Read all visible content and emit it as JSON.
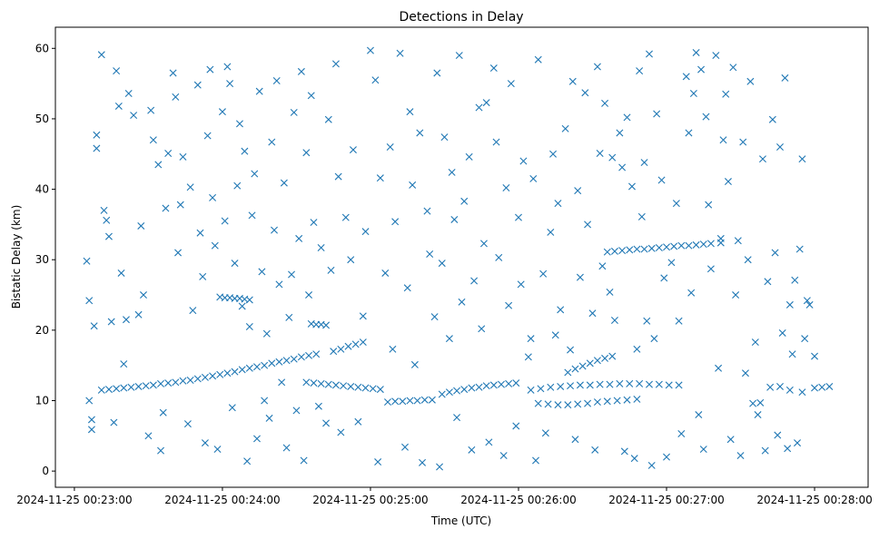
{
  "chart_data": {
    "type": "scatter",
    "title": "Detections in Delay",
    "xlabel": "Time (UTC)",
    "ylabel": "Bistatic Delay (km)",
    "x_units": "seconds since 2024-11-25 00:23:00",
    "xlim": [
      -7.7,
      321.7
    ],
    "ylim": [
      -2.3,
      63.0
    ],
    "marker": "x",
    "color": "#1f77b4",
    "grid": false,
    "xticks": [
      {
        "value": 0,
        "label": "2024-11-25 00:23:00"
      },
      {
        "value": 60,
        "label": "2024-11-25 00:24:00"
      },
      {
        "value": 120,
        "label": "2024-11-25 00:25:00"
      },
      {
        "value": 180,
        "label": "2024-11-25 00:26:00"
      },
      {
        "value": 240,
        "label": "2024-11-25 00:27:00"
      },
      {
        "value": 300,
        "label": "2024-11-25 00:28:00"
      }
    ],
    "yticks": [
      {
        "value": 0,
        "label": "0"
      },
      {
        "value": 10,
        "label": "10"
      },
      {
        "value": 20,
        "label": "20"
      },
      {
        "value": 30,
        "label": "30"
      },
      {
        "value": 40,
        "label": "40"
      },
      {
        "value": 50,
        "label": "50"
      },
      {
        "value": 60,
        "label": "60"
      }
    ],
    "points": [
      [
        11,
        11.5
      ],
      [
        14,
        11.6
      ],
      [
        17,
        11.7
      ],
      [
        20,
        11.8
      ],
      [
        23,
        11.9
      ],
      [
        26,
        12.0
      ],
      [
        29,
        12.1
      ],
      [
        32,
        12.2
      ],
      [
        35,
        12.4
      ],
      [
        38,
        12.5
      ],
      [
        41,
        12.6
      ],
      [
        44,
        12.8
      ],
      [
        47,
        12.9
      ],
      [
        50,
        13.1
      ],
      [
        53,
        13.3
      ],
      [
        56,
        13.5
      ],
      [
        59,
        13.7
      ],
      [
        62,
        13.9
      ],
      [
        65,
        14.1
      ],
      [
        68,
        14.4
      ],
      [
        71,
        14.6
      ],
      [
        74,
        14.8
      ],
      [
        77,
        15.0
      ],
      [
        80,
        15.3
      ],
      [
        83,
        15.5
      ],
      [
        86,
        15.7
      ],
      [
        89,
        15.9
      ],
      [
        92,
        16.2
      ],
      [
        95,
        16.4
      ],
      [
        98,
        16.6
      ],
      [
        94,
        12.6
      ],
      [
        97,
        12.5
      ],
      [
        100,
        12.4
      ],
      [
        103,
        12.3
      ],
      [
        106,
        12.2
      ],
      [
        109,
        12.1
      ],
      [
        112,
        12.0
      ],
      [
        115,
        11.9
      ],
      [
        118,
        11.8
      ],
      [
        121,
        11.7
      ],
      [
        124,
        11.6
      ],
      [
        127,
        9.8
      ],
      [
        130,
        9.9
      ],
      [
        133,
        9.9
      ],
      [
        136,
        10.0
      ],
      [
        139,
        10.0
      ],
      [
        142,
        10.1
      ],
      [
        145,
        10.1
      ],
      [
        149,
        10.9
      ],
      [
        152,
        11.2
      ],
      [
        155,
        11.4
      ],
      [
        158,
        11.6
      ],
      [
        161,
        11.8
      ],
      [
        164,
        11.9
      ],
      [
        167,
        12.1
      ],
      [
        170,
        12.2
      ],
      [
        173,
        12.3
      ],
      [
        176,
        12.4
      ],
      [
        179,
        12.5
      ],
      [
        185,
        11.5
      ],
      [
        189,
        11.7
      ],
      [
        193,
        11.9
      ],
      [
        197,
        12.0
      ],
      [
        201,
        12.1
      ],
      [
        205,
        12.2
      ],
      [
        209,
        12.2
      ],
      [
        213,
        12.3
      ],
      [
        217,
        12.3
      ],
      [
        221,
        12.4
      ],
      [
        225,
        12.4
      ],
      [
        229,
        12.4
      ],
      [
        233,
        12.3
      ],
      [
        237,
        12.3
      ],
      [
        241,
        12.2
      ],
      [
        245,
        12.2
      ],
      [
        188,
        9.6
      ],
      [
        192,
        9.5
      ],
      [
        196,
        9.4
      ],
      [
        200,
        9.4
      ],
      [
        204,
        9.5
      ],
      [
        208,
        9.6
      ],
      [
        212,
        9.8
      ],
      [
        216,
        9.9
      ],
      [
        220,
        10.0
      ],
      [
        224,
        10.1
      ],
      [
        228,
        10.2
      ],
      [
        216,
        31.1
      ],
      [
        219,
        31.2
      ],
      [
        222,
        31.3
      ],
      [
        225,
        31.4
      ],
      [
        228,
        31.5
      ],
      [
        231,
        31.5
      ],
      [
        234,
        31.6
      ],
      [
        237,
        31.7
      ],
      [
        240,
        31.8
      ],
      [
        243,
        31.9
      ],
      [
        246,
        32.0
      ],
      [
        249,
        32.0
      ],
      [
        252,
        32.1
      ],
      [
        255,
        32.2
      ],
      [
        258,
        32.3
      ],
      [
        262,
        32.4
      ],
      [
        200,
        14.0
      ],
      [
        203,
        14.5
      ],
      [
        206,
        14.9
      ],
      [
        209,
        15.3
      ],
      [
        212,
        15.7
      ],
      [
        215,
        16.0
      ],
      [
        218,
        16.3
      ],
      [
        105,
        17.0
      ],
      [
        108,
        17.3
      ],
      [
        111,
        17.7
      ],
      [
        114,
        18.0
      ],
      [
        117,
        18.3
      ],
      [
        59,
        24.7
      ],
      [
        61,
        24.6
      ],
      [
        63,
        24.6
      ],
      [
        65,
        24.5
      ],
      [
        67,
        24.5
      ],
      [
        69,
        24.4
      ],
      [
        71,
        24.3
      ],
      [
        96,
        20.9
      ],
      [
        98,
        20.8
      ],
      [
        100,
        20.8
      ],
      [
        102,
        20.7
      ],
      [
        275,
        9.6
      ],
      [
        278,
        9.7
      ],
      [
        282,
        11.9
      ],
      [
        286,
        12.0
      ],
      [
        290,
        11.5
      ],
      [
        295,
        11.2
      ],
      [
        300,
        11.8
      ],
      [
        303,
        11.9
      ],
      [
        306,
        12.0
      ],
      [
        5,
        29.8
      ],
      [
        6,
        24.2
      ],
      [
        6,
        10.0
      ],
      [
        7,
        5.9
      ],
      [
        7,
        7.3
      ],
      [
        8,
        20.6
      ],
      [
        9,
        45.8
      ],
      [
        9,
        47.7
      ],
      [
        11,
        59.1
      ],
      [
        12,
        37.0
      ],
      [
        13,
        35.6
      ],
      [
        14,
        33.3
      ],
      [
        15,
        21.2
      ],
      [
        16,
        6.9
      ],
      [
        17,
        56.8
      ],
      [
        18,
        51.8
      ],
      [
        19,
        28.1
      ],
      [
        20,
        15.2
      ],
      [
        21,
        21.5
      ],
      [
        22,
        53.6
      ],
      [
        24,
        50.5
      ],
      [
        26,
        22.2
      ],
      [
        27,
        34.8
      ],
      [
        28,
        25.0
      ],
      [
        30,
        5.0
      ],
      [
        31,
        51.2
      ],
      [
        32,
        47.0
      ],
      [
        34,
        43.5
      ],
      [
        35,
        2.9
      ],
      [
        36,
        8.3
      ],
      [
        37,
        37.3
      ],
      [
        38,
        45.1
      ],
      [
        40,
        56.5
      ],
      [
        41,
        53.1
      ],
      [
        42,
        31.0
      ],
      [
        43,
        37.8
      ],
      [
        44,
        44.6
      ],
      [
        46,
        6.7
      ],
      [
        47,
        40.3
      ],
      [
        48,
        22.8
      ],
      [
        50,
        54.8
      ],
      [
        51,
        33.8
      ],
      [
        52,
        27.6
      ],
      [
        53,
        4.0
      ],
      [
        54,
        47.6
      ],
      [
        55,
        57.0
      ],
      [
        56,
        38.8
      ],
      [
        57,
        32.0
      ],
      [
        58,
        3.1
      ],
      [
        60,
        51.0
      ],
      [
        61,
        35.5
      ],
      [
        62,
        57.4
      ],
      [
        63,
        55.0
      ],
      [
        64,
        9.0
      ],
      [
        65,
        29.5
      ],
      [
        66,
        40.5
      ],
      [
        67,
        49.3
      ],
      [
        68,
        23.4
      ],
      [
        69,
        45.4
      ],
      [
        70,
        1.4
      ],
      [
        71,
        20.5
      ],
      [
        72,
        36.3
      ],
      [
        73,
        42.2
      ],
      [
        74,
        4.6
      ],
      [
        75,
        53.9
      ],
      [
        76,
        28.3
      ],
      [
        77,
        10.0
      ],
      [
        78,
        19.5
      ],
      [
        79,
        7.5
      ],
      [
        80,
        46.7
      ],
      [
        81,
        34.2
      ],
      [
        82,
        55.4
      ],
      [
        83,
        26.5
      ],
      [
        84,
        12.6
      ],
      [
        85,
        40.9
      ],
      [
        86,
        3.3
      ],
      [
        87,
        21.8
      ],
      [
        88,
        27.9
      ],
      [
        89,
        50.9
      ],
      [
        90,
        8.6
      ],
      [
        91,
        33.0
      ],
      [
        92,
        56.7
      ],
      [
        93,
        1.5
      ],
      [
        94,
        45.2
      ],
      [
        95,
        25.0
      ],
      [
        96,
        53.3
      ],
      [
        97,
        35.3
      ],
      [
        99,
        9.2
      ],
      [
        100,
        31.7
      ],
      [
        102,
        6.8
      ],
      [
        103,
        49.9
      ],
      [
        104,
        28.5
      ],
      [
        106,
        57.8
      ],
      [
        107,
        41.8
      ],
      [
        108,
        5.5
      ],
      [
        110,
        36.0
      ],
      [
        112,
        30.0
      ],
      [
        113,
        45.6
      ],
      [
        115,
        7.0
      ],
      [
        117,
        22.0
      ],
      [
        118,
        34.0
      ],
      [
        120,
        59.7
      ],
      [
        122,
        55.5
      ],
      [
        123,
        1.3
      ],
      [
        124,
        41.6
      ],
      [
        126,
        28.1
      ],
      [
        128,
        46.0
      ],
      [
        129,
        17.3
      ],
      [
        130,
        35.4
      ],
      [
        132,
        59.3
      ],
      [
        134,
        3.4
      ],
      [
        135,
        26.0
      ],
      [
        136,
        51.0
      ],
      [
        137,
        40.6
      ],
      [
        138,
        15.1
      ],
      [
        140,
        48.0
      ],
      [
        141,
        1.2
      ],
      [
        143,
        36.9
      ],
      [
        144,
        30.8
      ],
      [
        146,
        21.9
      ],
      [
        147,
        56.5
      ],
      [
        148,
        0.6
      ],
      [
        149,
        29.5
      ],
      [
        150,
        47.4
      ],
      [
        152,
        18.8
      ],
      [
        153,
        42.4
      ],
      [
        154,
        35.7
      ],
      [
        155,
        7.6
      ],
      [
        156,
        59.0
      ],
      [
        157,
        24.0
      ],
      [
        158,
        38.3
      ],
      [
        160,
        44.6
      ],
      [
        161,
        3.0
      ],
      [
        162,
        27.0
      ],
      [
        164,
        51.6
      ],
      [
        165,
        20.2
      ],
      [
        166,
        32.3
      ],
      [
        167,
        52.3
      ],
      [
        168,
        4.1
      ],
      [
        170,
        57.2
      ],
      [
        171,
        46.7
      ],
      [
        172,
        30.3
      ],
      [
        174,
        2.2
      ],
      [
        175,
        40.2
      ],
      [
        176,
        23.5
      ],
      [
        177,
        55.0
      ],
      [
        179,
        6.4
      ],
      [
        180,
        36.0
      ],
      [
        181,
        26.5
      ],
      [
        182,
        44.0
      ],
      [
        184,
        16.2
      ],
      [
        185,
        18.8
      ],
      [
        186,
        41.5
      ],
      [
        187,
        1.5
      ],
      [
        188,
        58.4
      ],
      [
        190,
        28.0
      ],
      [
        191,
        5.4
      ],
      [
        193,
        33.9
      ],
      [
        194,
        45.0
      ],
      [
        195,
        19.3
      ],
      [
        196,
        38.0
      ],
      [
        197,
        22.9
      ],
      [
        199,
        48.6
      ],
      [
        201,
        17.2
      ],
      [
        202,
        55.3
      ],
      [
        203,
        4.5
      ],
      [
        204,
        39.8
      ],
      [
        205,
        27.5
      ],
      [
        207,
        53.7
      ],
      [
        208,
        35.0
      ],
      [
        210,
        22.4
      ],
      [
        211,
        3.0
      ],
      [
        212,
        57.4
      ],
      [
        213,
        45.1
      ],
      [
        214,
        29.1
      ],
      [
        215,
        52.2
      ],
      [
        217,
        25.4
      ],
      [
        218,
        44.5
      ],
      [
        219,
        21.4
      ],
      [
        221,
        48.0
      ],
      [
        222,
        43.1
      ],
      [
        223,
        2.8
      ],
      [
        224,
        50.2
      ],
      [
        226,
        40.4
      ],
      [
        227,
        1.8
      ],
      [
        228,
        17.3
      ],
      [
        229,
        56.8
      ],
      [
        230,
        36.1
      ],
      [
        231,
        43.8
      ],
      [
        232,
        21.3
      ],
      [
        233,
        59.2
      ],
      [
        234,
        0.8
      ],
      [
        235,
        18.8
      ],
      [
        236,
        50.7
      ],
      [
        238,
        41.3
      ],
      [
        239,
        27.4
      ],
      [
        240,
        2.0
      ],
      [
        242,
        29.6
      ],
      [
        244,
        38.0
      ],
      [
        245,
        21.3
      ],
      [
        246,
        5.3
      ],
      [
        248,
        56.0
      ],
      [
        249,
        48.0
      ],
      [
        250,
        25.3
      ],
      [
        251,
        53.6
      ],
      [
        252,
        59.4
      ],
      [
        253,
        8.0
      ],
      [
        254,
        57.0
      ],
      [
        255,
        3.1
      ],
      [
        256,
        50.3
      ],
      [
        257,
        37.8
      ],
      [
        258,
        28.7
      ],
      [
        260,
        59.0
      ],
      [
        261,
        14.6
      ],
      [
        262,
        33.0
      ],
      [
        263,
        47.0
      ],
      [
        264,
        53.5
      ],
      [
        265,
        41.1
      ],
      [
        266,
        4.5
      ],
      [
        267,
        57.3
      ],
      [
        268,
        25.0
      ],
      [
        269,
        32.7
      ],
      [
        270,
        2.2
      ],
      [
        271,
        46.7
      ],
      [
        272,
        13.9
      ],
      [
        273,
        30.0
      ],
      [
        274,
        55.3
      ],
      [
        276,
        18.3
      ],
      [
        277,
        8.0
      ],
      [
        279,
        44.3
      ],
      [
        280,
        2.9
      ],
      [
        281,
        26.9
      ],
      [
        283,
        49.9
      ],
      [
        284,
        31.0
      ],
      [
        285,
        5.1
      ],
      [
        286,
        46.0
      ],
      [
        287,
        19.6
      ],
      [
        288,
        55.8
      ],
      [
        289,
        3.2
      ],
      [
        290,
        23.6
      ],
      [
        291,
        16.6
      ],
      [
        292,
        27.1
      ],
      [
        293,
        4.0
      ],
      [
        294,
        31.5
      ],
      [
        295,
        44.3
      ],
      [
        296,
        18.8
      ],
      [
        297,
        24.2
      ],
      [
        298,
        23.6
      ],
      [
        300,
        16.3
      ]
    ]
  }
}
